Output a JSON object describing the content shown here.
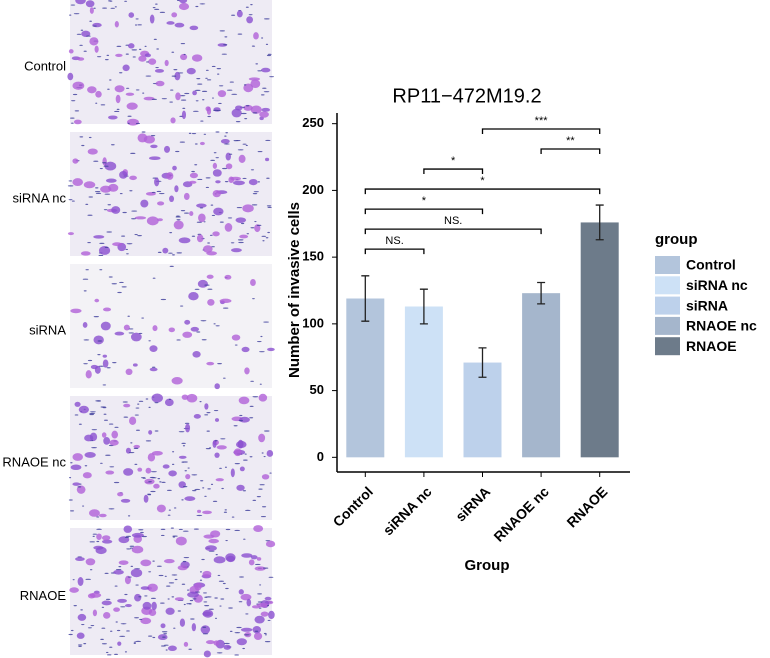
{
  "panels": [
    "Control",
    "siRNA nc",
    "siRNA",
    "RNAOE nc",
    "RNAOE"
  ],
  "chart_data": {
    "type": "bar",
    "title": "RP11−472M19.2",
    "x_label": "Group",
    "y_label": "Number of invasive cells",
    "categories": [
      "Control",
      "siRNA nc",
      "siRNA",
      "RNAOE nc",
      "RNAOE"
    ],
    "values": [
      119,
      113,
      71,
      123,
      176
    ],
    "errors": [
      17,
      13,
      11,
      8,
      13
    ],
    "colors": [
      "#b3c5dc",
      "#cde1f6",
      "#bdd1eb",
      "#a5b6cc",
      "#6d7b8a"
    ],
    "ylim": [
      -11,
      258
    ],
    "yticks": [
      0,
      50,
      100,
      150,
      200,
      250
    ],
    "legend_title": "group",
    "legend": "right",
    "annotations": [
      {
        "groups": [
          0,
          1
        ],
        "label": "NS."
      },
      {
        "groups": [
          0,
          3
        ],
        "label": "NS."
      },
      {
        "groups": [
          0,
          2
        ],
        "label": "*"
      },
      {
        "groups": [
          0,
          4
        ],
        "label": "*"
      },
      {
        "groups": [
          1,
          2
        ],
        "label": "*"
      },
      {
        "groups": [
          3,
          4
        ],
        "label": "**"
      },
      {
        "groups": [
          2,
          4
        ],
        "label": "***"
      }
    ]
  }
}
